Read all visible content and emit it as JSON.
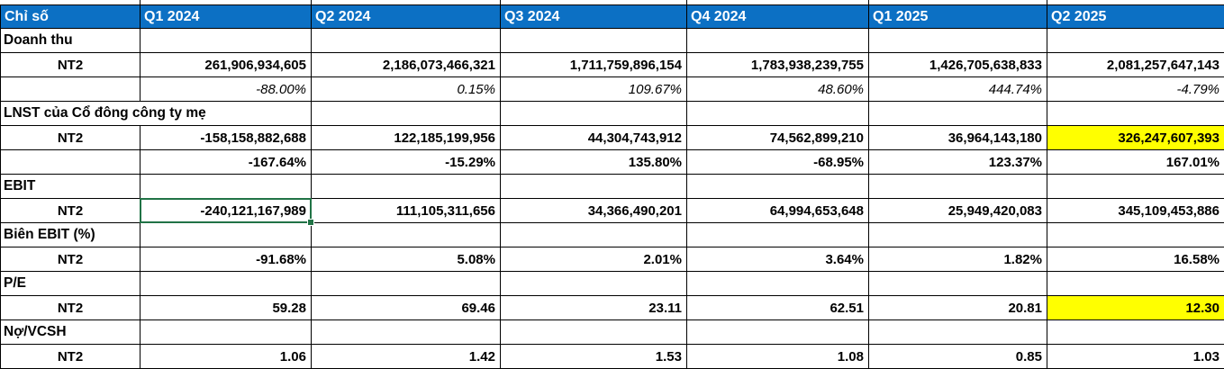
{
  "colors": {
    "header_bg": "#0C70C4",
    "header_text": "#FFFFFF",
    "highlight_yellow": "#FFFF00",
    "selection_green": "#217346",
    "gridline": "#000000"
  },
  "table": {
    "columns": [
      "Chỉ số",
      "Q1 2024",
      "Q2 2024",
      "Q3 2024",
      "Q4 2024",
      "Q1 2025",
      "Q2 2025"
    ],
    "rows": [
      {
        "kind": "section",
        "label": "Doanh thu",
        "values": [
          "",
          "",
          "",
          "",
          "",
          ""
        ]
      },
      {
        "kind": "values",
        "label": "NT2",
        "values": [
          "261,906,934,605",
          "2,186,073,466,321",
          "1,711,759,896,154",
          "1,783,938,239,755",
          "1,426,705,638,833",
          "2,081,257,647,143"
        ]
      },
      {
        "kind": "growth_italic",
        "label": "",
        "values": [
          "-88.00%",
          "0.15%",
          "109.67%",
          "48.60%",
          "444.74%",
          "-4.79%"
        ]
      },
      {
        "kind": "section",
        "label": "LNST của Cổ đông công ty mẹ",
        "span2": true,
        "values": [
          "",
          "",
          "",
          "",
          ""
        ]
      },
      {
        "kind": "values",
        "label": "NT2",
        "values": [
          "-158,158,882,688",
          "122,185,199,956",
          "44,304,743,912",
          "74,562,899,210",
          "36,964,143,180",
          "326,247,607,393"
        ],
        "highlight": [
          5
        ]
      },
      {
        "kind": "growth",
        "label": "",
        "values": [
          "-167.64%",
          "-15.29%",
          "135.80%",
          "-68.95%",
          "123.37%",
          "167.01%"
        ]
      },
      {
        "kind": "section",
        "label": "EBIT",
        "values": [
          "",
          "",
          "",
          "",
          "",
          ""
        ]
      },
      {
        "kind": "values",
        "label": "NT2",
        "values": [
          "-240,121,167,989",
          "111,105,311,656",
          "34,366,490,201",
          "64,994,653,648",
          "25,949,420,083",
          "345,109,453,886"
        ],
        "selected": [
          0
        ]
      },
      {
        "kind": "section",
        "label": "Biên EBIT (%)",
        "values": [
          "",
          "",
          "",
          "",
          "",
          ""
        ]
      },
      {
        "kind": "values",
        "label": "NT2",
        "values": [
          "-91.68%",
          "5.08%",
          "2.01%",
          "3.64%",
          "1.82%",
          "16.58%"
        ]
      },
      {
        "kind": "section",
        "label": "P/E",
        "values": [
          "",
          "",
          "",
          "",
          "",
          ""
        ]
      },
      {
        "kind": "values",
        "label": "NT2",
        "values": [
          "59.28",
          "69.46",
          "23.11",
          "62.51",
          "20.81",
          "12.30"
        ],
        "highlight": [
          5
        ]
      },
      {
        "kind": "section",
        "label": "Nợ/VCSH",
        "values": [
          "",
          "",
          "",
          "",
          "",
          ""
        ]
      },
      {
        "kind": "values",
        "label": "NT2",
        "values": [
          "1.06",
          "1.42",
          "1.53",
          "1.08",
          "0.85",
          "1.03"
        ]
      }
    ]
  }
}
